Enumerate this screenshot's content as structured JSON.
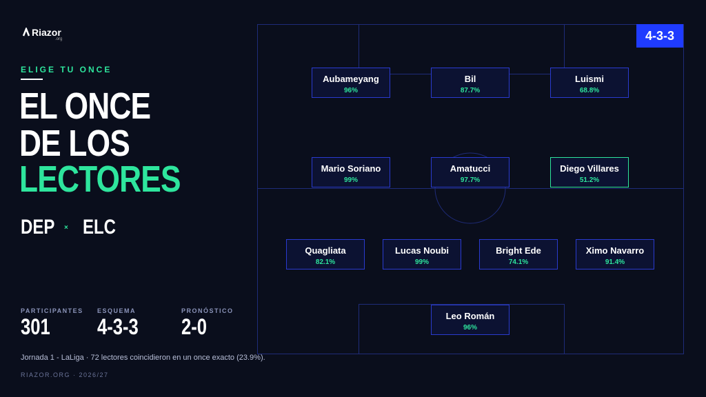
{
  "brand": {
    "name": "Riazor",
    "suffix": ".org"
  },
  "kicker": "ELIGE TU ONCE",
  "title": {
    "lines": [
      "EL ONCE",
      "DE LOS",
      "LECTORES"
    ]
  },
  "match": {
    "home": "DEP",
    "away": "ELC"
  },
  "stats": [
    {
      "label": "PARTICIPANTES",
      "value": "301"
    },
    {
      "label": "ESQUEMA",
      "value": "4-3-3"
    },
    {
      "label": "PRONÓSTICO",
      "value": "2-0"
    }
  ],
  "note": "Jornada 1 - LaLiga · 72 lectores coincidieron en un once exacto (23.9%).",
  "footer": "RIAZOR.ORG · 2026/27",
  "pitch": {
    "formation": "4-3-3",
    "rows": [
      [
        {
          "name": "Aubameyang",
          "pct": "96%"
        },
        {
          "name": "Bil",
          "pct": "87.7%"
        },
        {
          "name": "Luismi",
          "pct": "68.8%"
        }
      ],
      [
        {
          "name": "Mario Soriano",
          "pct": "99%"
        },
        {
          "name": "Amatucci",
          "pct": "97.7%"
        },
        {
          "name": "Diego Villares",
          "pct": "51.2%",
          "highlighted": true
        }
      ],
      [
        {
          "name": "Quagliata",
          "pct": "82.1%"
        },
        {
          "name": "Lucas Noubi",
          "pct": "99%"
        },
        {
          "name": "Bright Ede",
          "pct": "74.1%"
        },
        {
          "name": "Ximo Navarro",
          "pct": "91.4%"
        }
      ],
      [
        {
          "name": "Leo Román",
          "pct": "96%"
        }
      ]
    ]
  }
}
